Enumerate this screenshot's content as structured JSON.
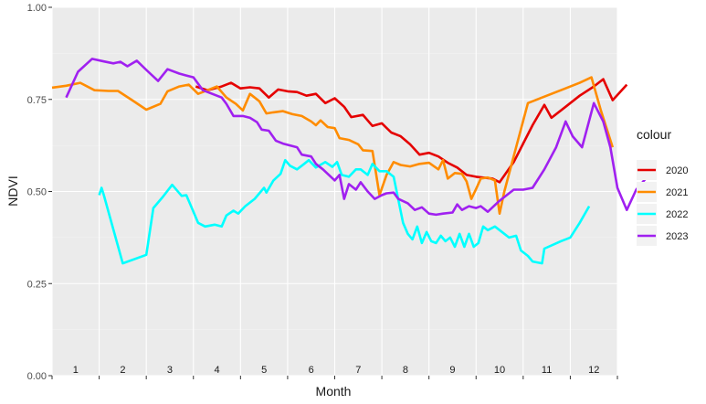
{
  "chart_data": {
    "type": "line",
    "title": "",
    "xlabel": "Month",
    "ylabel": "NDVI",
    "x_range": [
      0,
      12
    ],
    "ylim": [
      0,
      1
    ],
    "y_ticks": [
      0.0,
      0.25,
      0.5,
      0.75,
      1.0
    ],
    "y_tick_labels": [
      "0.00",
      "0.25",
      "0.50",
      "0.75",
      "1.00"
    ],
    "month_labels": [
      "1",
      "2",
      "3",
      "4",
      "5",
      "6",
      "7",
      "8",
      "9",
      "10",
      "11",
      "12"
    ],
    "grid": true,
    "legend": {
      "title": "colour",
      "placement": "right"
    },
    "series": [
      {
        "name": "2020",
        "color": "#e50000",
        "points": [
          [
            3.05,
            0.785
          ],
          [
            3.3,
            0.775
          ],
          [
            3.6,
            0.785
          ],
          [
            3.8,
            0.795
          ],
          [
            4.0,
            0.78
          ],
          [
            4.2,
            0.783
          ],
          [
            4.4,
            0.78
          ],
          [
            4.6,
            0.755
          ],
          [
            4.8,
            0.777
          ],
          [
            5.0,
            0.772
          ],
          [
            5.2,
            0.77
          ],
          [
            5.4,
            0.76
          ],
          [
            5.6,
            0.765
          ],
          [
            5.8,
            0.74
          ],
          [
            6.0,
            0.753
          ],
          [
            6.2,
            0.73
          ],
          [
            6.35,
            0.702
          ],
          [
            6.6,
            0.708
          ],
          [
            6.8,
            0.678
          ],
          [
            7.0,
            0.685
          ],
          [
            7.2,
            0.66
          ],
          [
            7.4,
            0.65
          ],
          [
            7.6,
            0.628
          ],
          [
            7.8,
            0.6
          ],
          [
            8.0,
            0.605
          ],
          [
            8.2,
            0.595
          ],
          [
            8.4,
            0.578
          ],
          [
            8.6,
            0.565
          ],
          [
            8.8,
            0.545
          ],
          [
            9.0,
            0.54
          ],
          [
            9.2,
            0.537
          ],
          [
            9.35,
            0.535
          ],
          [
            9.5,
            0.525
          ],
          [
            9.8,
            0.58
          ],
          [
            10.0,
            0.63
          ],
          [
            10.2,
            0.68
          ],
          [
            10.45,
            0.735
          ],
          [
            10.6,
            0.7
          ],
          [
            10.9,
            0.73
          ],
          [
            11.2,
            0.76
          ],
          [
            11.5,
            0.785
          ],
          [
            11.7,
            0.805
          ],
          [
            11.9,
            0.748
          ],
          [
            12.2,
            0.79
          ]
        ]
      },
      {
        "name": "2021",
        "color": "#ff8c00",
        "points": [
          [
            0.0,
            0.782
          ],
          [
            0.3,
            0.787
          ],
          [
            0.6,
            0.795
          ],
          [
            0.9,
            0.775
          ],
          [
            1.2,
            0.773
          ],
          [
            1.4,
            0.773
          ],
          [
            1.7,
            0.748
          ],
          [
            2.0,
            0.722
          ],
          [
            2.3,
            0.738
          ],
          [
            2.45,
            0.772
          ],
          [
            2.7,
            0.785
          ],
          [
            2.9,
            0.79
          ],
          [
            3.1,
            0.765
          ],
          [
            3.3,
            0.775
          ],
          [
            3.5,
            0.785
          ],
          [
            3.7,
            0.755
          ],
          [
            3.9,
            0.738
          ],
          [
            4.05,
            0.72
          ],
          [
            4.2,
            0.765
          ],
          [
            4.4,
            0.745
          ],
          [
            4.55,
            0.712
          ],
          [
            4.7,
            0.715
          ],
          [
            4.9,
            0.718
          ],
          [
            5.1,
            0.71
          ],
          [
            5.3,
            0.705
          ],
          [
            5.5,
            0.69
          ],
          [
            5.6,
            0.68
          ],
          [
            5.7,
            0.693
          ],
          [
            5.85,
            0.675
          ],
          [
            6.0,
            0.672
          ],
          [
            6.1,
            0.645
          ],
          [
            6.3,
            0.64
          ],
          [
            6.5,
            0.628
          ],
          [
            6.6,
            0.612
          ],
          [
            6.8,
            0.61
          ],
          [
            6.95,
            0.49
          ],
          [
            7.1,
            0.545
          ],
          [
            7.25,
            0.58
          ],
          [
            7.4,
            0.572
          ],
          [
            7.6,
            0.568
          ],
          [
            7.8,
            0.575
          ],
          [
            8.0,
            0.578
          ],
          [
            8.2,
            0.56
          ],
          [
            8.3,
            0.585
          ],
          [
            8.4,
            0.535
          ],
          [
            8.55,
            0.55
          ],
          [
            8.7,
            0.548
          ],
          [
            8.8,
            0.527
          ],
          [
            8.9,
            0.48
          ],
          [
            9.0,
            0.507
          ],
          [
            9.1,
            0.535
          ],
          [
            9.25,
            0.538
          ],
          [
            9.4,
            0.53
          ],
          [
            9.5,
            0.44
          ],
          [
            9.6,
            0.5
          ],
          [
            9.85,
            0.62
          ],
          [
            10.1,
            0.74
          ],
          [
            10.4,
            0.755
          ],
          [
            10.8,
            0.775
          ],
          [
            11.2,
            0.795
          ],
          [
            11.45,
            0.81
          ],
          [
            11.65,
            0.72
          ],
          [
            11.9,
            0.62
          ]
        ]
      },
      {
        "name": "2022",
        "color": "#00ffff",
        "points": [
          [
            1.0,
            0.49
          ],
          [
            1.05,
            0.51
          ],
          [
            1.1,
            0.49
          ],
          [
            1.5,
            0.305
          ],
          [
            2.0,
            0.328
          ],
          [
            2.15,
            0.455
          ],
          [
            2.35,
            0.485
          ],
          [
            2.55,
            0.518
          ],
          [
            2.75,
            0.488
          ],
          [
            2.85,
            0.49
          ],
          [
            2.95,
            0.46
          ],
          [
            3.1,
            0.415
          ],
          [
            3.25,
            0.405
          ],
          [
            3.45,
            0.41
          ],
          [
            3.6,
            0.405
          ],
          [
            3.7,
            0.435
          ],
          [
            3.85,
            0.448
          ],
          [
            3.95,
            0.44
          ],
          [
            4.1,
            0.46
          ],
          [
            4.3,
            0.48
          ],
          [
            4.5,
            0.51
          ],
          [
            4.55,
            0.497
          ],
          [
            4.7,
            0.53
          ],
          [
            4.85,
            0.548
          ],
          [
            4.95,
            0.585
          ],
          [
            5.05,
            0.57
          ],
          [
            5.2,
            0.56
          ],
          [
            5.35,
            0.575
          ],
          [
            5.45,
            0.585
          ],
          [
            5.6,
            0.565
          ],
          [
            5.8,
            0.58
          ],
          [
            5.95,
            0.567
          ],
          [
            6.05,
            0.58
          ],
          [
            6.15,
            0.545
          ],
          [
            6.3,
            0.54
          ],
          [
            6.45,
            0.56
          ],
          [
            6.55,
            0.56
          ],
          [
            6.7,
            0.545
          ],
          [
            6.8,
            0.575
          ],
          [
            6.95,
            0.555
          ],
          [
            7.1,
            0.555
          ],
          [
            7.25,
            0.54
          ],
          [
            7.45,
            0.415
          ],
          [
            7.55,
            0.385
          ],
          [
            7.65,
            0.37
          ],
          [
            7.75,
            0.405
          ],
          [
            7.85,
            0.36
          ],
          [
            7.95,
            0.39
          ],
          [
            8.05,
            0.365
          ],
          [
            8.15,
            0.36
          ],
          [
            8.25,
            0.38
          ],
          [
            8.35,
            0.365
          ],
          [
            8.45,
            0.375
          ],
          [
            8.55,
            0.35
          ],
          [
            8.65,
            0.385
          ],
          [
            8.75,
            0.35
          ],
          [
            8.85,
            0.385
          ],
          [
            8.95,
            0.35
          ],
          [
            9.05,
            0.36
          ],
          [
            9.15,
            0.405
          ],
          [
            9.25,
            0.395
          ],
          [
            9.4,
            0.405
          ],
          [
            9.55,
            0.39
          ],
          [
            9.7,
            0.375
          ],
          [
            9.85,
            0.38
          ],
          [
            9.95,
            0.34
          ],
          [
            10.1,
            0.325
          ],
          [
            10.2,
            0.31
          ],
          [
            10.4,
            0.305
          ],
          [
            10.45,
            0.345
          ],
          [
            10.8,
            0.365
          ],
          [
            11.0,
            0.375
          ],
          [
            11.2,
            0.415
          ],
          [
            11.4,
            0.46
          ]
        ]
      },
      {
        "name": "2023",
        "color": "#a020f0",
        "points": [
          [
            0.3,
            0.755
          ],
          [
            0.55,
            0.825
          ],
          [
            0.85,
            0.86
          ],
          [
            1.1,
            0.853
          ],
          [
            1.3,
            0.848
          ],
          [
            1.45,
            0.852
          ],
          [
            1.6,
            0.84
          ],
          [
            1.8,
            0.855
          ],
          [
            2.0,
            0.83
          ],
          [
            2.25,
            0.8
          ],
          [
            2.45,
            0.832
          ],
          [
            2.7,
            0.82
          ],
          [
            2.85,
            0.815
          ],
          [
            3.0,
            0.81
          ],
          [
            3.2,
            0.775
          ],
          [
            3.4,
            0.765
          ],
          [
            3.6,
            0.755
          ],
          [
            3.7,
            0.738
          ],
          [
            3.85,
            0.705
          ],
          [
            4.05,
            0.705
          ],
          [
            4.2,
            0.7
          ],
          [
            4.35,
            0.688
          ],
          [
            4.45,
            0.668
          ],
          [
            4.6,
            0.665
          ],
          [
            4.75,
            0.638
          ],
          [
            4.9,
            0.63
          ],
          [
            5.05,
            0.625
          ],
          [
            5.2,
            0.62
          ],
          [
            5.3,
            0.6
          ],
          [
            5.5,
            0.595
          ],
          [
            5.6,
            0.575
          ],
          [
            5.75,
            0.56
          ],
          [
            5.85,
            0.548
          ],
          [
            6.0,
            0.53
          ],
          [
            6.1,
            0.545
          ],
          [
            6.2,
            0.48
          ],
          [
            6.3,
            0.52
          ],
          [
            6.45,
            0.505
          ],
          [
            6.55,
            0.525
          ],
          [
            6.7,
            0.5
          ],
          [
            6.85,
            0.48
          ],
          [
            7.0,
            0.49
          ],
          [
            7.1,
            0.495
          ],
          [
            7.25,
            0.497
          ],
          [
            7.35,
            0.48
          ],
          [
            7.55,
            0.468
          ],
          [
            7.7,
            0.45
          ],
          [
            7.85,
            0.457
          ],
          [
            8.0,
            0.44
          ],
          [
            8.15,
            0.437
          ],
          [
            8.3,
            0.44
          ],
          [
            8.5,
            0.443
          ],
          [
            8.6,
            0.465
          ],
          [
            8.7,
            0.45
          ],
          [
            8.85,
            0.46
          ],
          [
            9.0,
            0.455
          ],
          [
            9.1,
            0.46
          ],
          [
            9.25,
            0.445
          ],
          [
            9.5,
            0.475
          ],
          [
            9.8,
            0.505
          ],
          [
            10.0,
            0.505
          ],
          [
            10.2,
            0.51
          ],
          [
            10.45,
            0.56
          ],
          [
            10.7,
            0.62
          ],
          [
            10.9,
            0.69
          ],
          [
            11.05,
            0.65
          ],
          [
            11.25,
            0.62
          ],
          [
            11.5,
            0.74
          ],
          [
            11.7,
            0.69
          ],
          [
            11.85,
            0.62
          ],
          [
            12.0,
            0.51
          ],
          [
            12.2,
            0.45
          ],
          [
            12.4,
            0.505
          ],
          [
            12.6,
            0.535
          ]
        ]
      }
    ]
  }
}
